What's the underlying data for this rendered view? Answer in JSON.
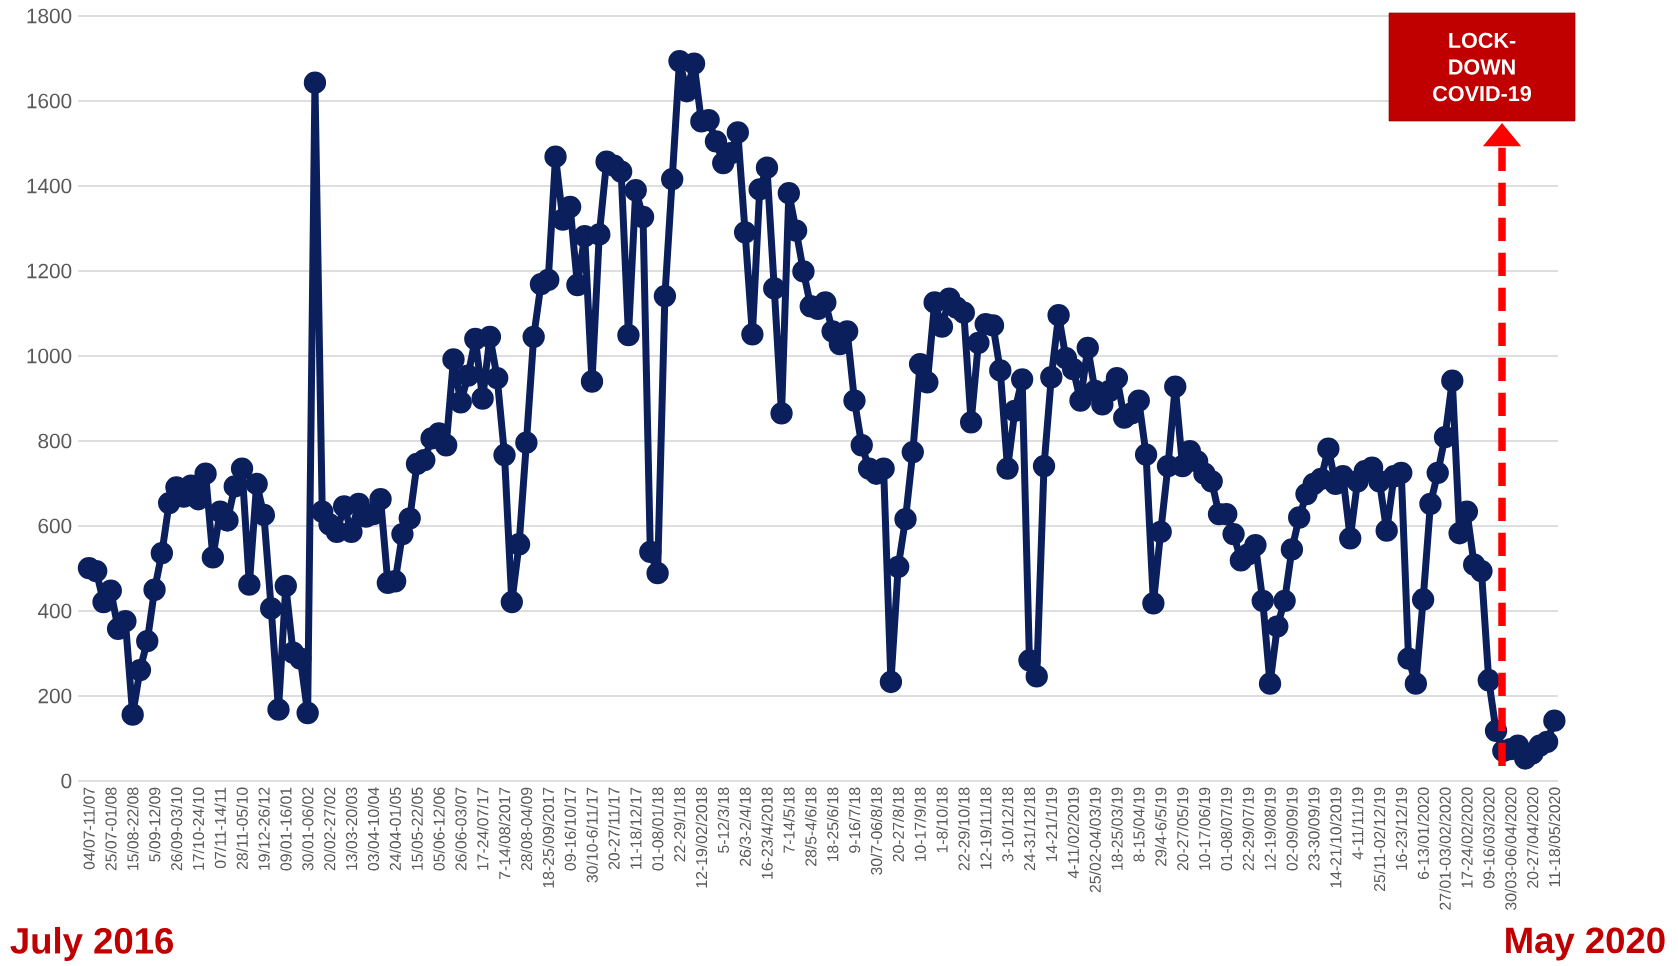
{
  "chart_data": {
    "type": "line",
    "categories": [
      "04/07-11/07",
      null,
      null,
      "25/07-01/08",
      null,
      null,
      "15/08-22/08",
      null,
      null,
      "5/09-12/09",
      null,
      null,
      "26/09-03/10",
      null,
      null,
      "17/10-24/10",
      null,
      null,
      "07/11-14/11",
      null,
      null,
      "28/11-05/10",
      null,
      null,
      "19/12-26/12",
      null,
      null,
      "09/01-16/01",
      null,
      null,
      "30/01-06/02",
      null,
      null,
      "20/02-27/02",
      null,
      null,
      "13/03-20/03",
      null,
      null,
      "03/04-10/04",
      null,
      null,
      "24/04-01/05",
      null,
      null,
      "15/05-22/05",
      null,
      null,
      "05/06-12/06",
      null,
      null,
      "26/06-03/07",
      null,
      null,
      "17-24/07/17",
      null,
      null,
      "7-14/08/2017",
      null,
      null,
      "28/08-04/09",
      null,
      null,
      "18-25/09/2017",
      null,
      null,
      "09-16/10/17",
      null,
      null,
      "30/10-6/11/17",
      null,
      null,
      "20-27/11/17",
      null,
      null,
      "11-18/12/17",
      null,
      null,
      "01-08/01/18",
      null,
      null,
      "22-29/1/18",
      null,
      null,
      "12-19/02/2018",
      null,
      null,
      "5-12/3/18",
      null,
      null,
      "26/3-2/4/18",
      null,
      null,
      "16-23/4/2018",
      null,
      null,
      "7-14/5/18",
      null,
      null,
      "28/5-4/6/18",
      null,
      null,
      "18-25/6/18",
      null,
      null,
      "9-16/7/18",
      null,
      null,
      "30/7-06/8/18",
      null,
      null,
      "20-27/8/18",
      null,
      null,
      "10-17/9/18",
      null,
      null,
      "1-8/10/18",
      null,
      null,
      "22-29/10/18",
      null,
      null,
      "12-19/11/18",
      null,
      null,
      "3-10/12/18",
      null,
      null,
      "24-31/12/18",
      null,
      null,
      "14-21/1/19",
      null,
      null,
      "4-11/02/2019",
      null,
      null,
      "25/02-04/03/19",
      null,
      null,
      "18-25/03/19",
      null,
      null,
      "8-15/04/19",
      null,
      null,
      "29/4-6/5/19",
      null,
      null,
      "20-27/05/19",
      null,
      null,
      "10-17/06/19",
      null,
      null,
      "01-08/07/19",
      null,
      null,
      "22-29/07/19",
      null,
      null,
      "12-19/08/19",
      null,
      null,
      "02-09/09/19",
      null,
      null,
      "23-30/09/19",
      null,
      null,
      "14-21/10/2019",
      null,
      null,
      "4-11/11/19",
      null,
      null,
      "25/11-02/12/19",
      null,
      null,
      "16-23/12/19",
      null,
      null,
      "6-13/01/2020",
      null,
      null,
      "27/01-03/02/2020",
      null,
      null,
      "17-24/02/2020",
      null,
      null,
      "09-16/03/2020",
      null,
      null,
      "30/03-06/04/2020",
      null,
      null,
      "20-27/04/2020",
      null,
      null,
      "11-18/05/2020"
    ],
    "values": [
      501,
      494,
      421,
      448,
      358,
      376,
      156,
      261,
      329,
      450,
      536,
      654,
      691,
      669,
      695,
      663,
      723,
      526,
      634,
      613,
      693,
      735,
      462,
      699,
      626,
      406,
      168,
      459,
      302,
      288,
      160,
      1643,
      634,
      604,
      586,
      646,
      586,
      652,
      622,
      628,
      663,
      466,
      470,
      581,
      618,
      746,
      755,
      806,
      818,
      790,
      992,
      891,
      954,
      1040,
      900,
      1045,
      948,
      767,
      421,
      557,
      796,
      1045,
      1169,
      1179,
      1469,
      1321,
      1351,
      1167,
      1282,
      940,
      1286,
      1457,
      1448,
      1434,
      1049,
      1390,
      1327,
      539,
      489,
      1141,
      1416,
      1694,
      1623,
      1688,
      1552,
      1555,
      1505,
      1454,
      1477,
      1526,
      1291,
      1051,
      1392,
      1443,
      1159,
      865,
      1383,
      1295,
      1199,
      1117,
      1111,
      1126,
      1058,
      1028,
      1058,
      895,
      790,
      735,
      723,
      735,
      233,
      504,
      616,
      774,
      981,
      938,
      1126,
      1069,
      1135,
      1114,
      1102,
      844,
      1031,
      1075,
      1072,
      966,
      735,
      871,
      945,
      284,
      246,
      741,
      950,
      1096,
      995,
      969,
      895,
      1019,
      918,
      886,
      918,
      948,
      855,
      865,
      895,
      768,
      418,
      586,
      741,
      928,
      741,
      776,
      752,
      723,
      705,
      628,
      628,
      581,
      519,
      533,
      555,
      424,
      229,
      364,
      424,
      545,
      620,
      675,
      699,
      711,
      782,
      699,
      717,
      571,
      705,
      729,
      737,
      705,
      589,
      717,
      725,
      288,
      229,
      427,
      652,
      725,
      809,
      942,
      583,
      634,
      509,
      494,
      237,
      118,
      71,
      75,
      83,
      53,
      65,
      83,
      92,
      142
    ],
    "color": "#0a1f5c",
    "ylim": [
      0,
      1800
    ],
    "yticks": [
      0,
      200,
      400,
      600,
      800,
      1000,
      1200,
      1400,
      1600,
      1800
    ],
    "grid": "y",
    "marker": "circle",
    "line_style": "solid",
    "annotations": [
      "July 2016",
      "May 2020",
      "LOCK-DOWN COVID-19"
    ]
  }
}
